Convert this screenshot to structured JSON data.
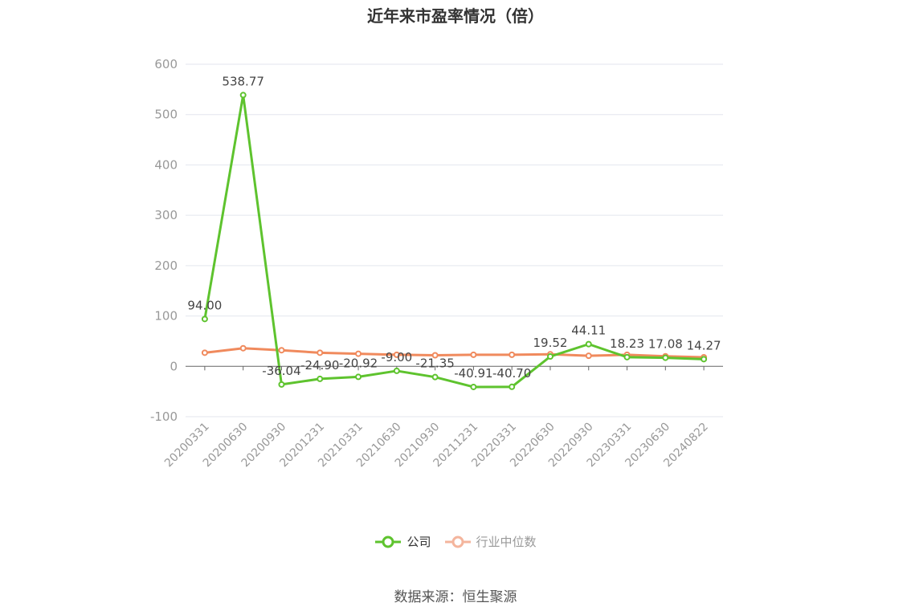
{
  "title": "近年来市盈率情况（倍）",
  "source": "数据来源：恒生聚源",
  "colors": {
    "company": "#5ec32e",
    "industry": "#f08a5d",
    "industry_legend": "#f4b59d",
    "grid": "#e3e6ee",
    "axis": "#666666",
    "tick_text": "#999999",
    "label_text": "#444444"
  },
  "chart_data": {
    "type": "line",
    "categories": [
      "20200331",
      "20200630",
      "20200930",
      "20201231",
      "20210331",
      "20210630",
      "20210930",
      "20211231",
      "20220331",
      "20220630",
      "20220930",
      "20230331",
      "20230630",
      "20240822"
    ],
    "series": [
      {
        "name": "公司",
        "values": [
          94.0,
          538.77,
          -36.04,
          -24.9,
          -20.92,
          -9.0,
          -21.35,
          -40.91,
          -40.7,
          19.52,
          44.11,
          18.23,
          17.08,
          14.27
        ],
        "labels": [
          "94.00",
          "538.77",
          "-36.04",
          "-24.90",
          "-20.92",
          "-9.00",
          "-21.35",
          "-40.91",
          "-40.70",
          "19.52",
          "44.11",
          "18.23",
          "17.08",
          "14.27"
        ]
      },
      {
        "name": "行业中位数",
        "values": [
          27,
          36,
          32,
          27,
          25,
          23,
          22,
          23,
          23,
          24,
          21,
          23,
          20,
          18
        ]
      }
    ],
    "ylim": [
      -100,
      600
    ],
    "yticks": [
      -100,
      0,
      100,
      200,
      300,
      400,
      500,
      600
    ],
    "grid": true,
    "legend_position": "bottom"
  }
}
